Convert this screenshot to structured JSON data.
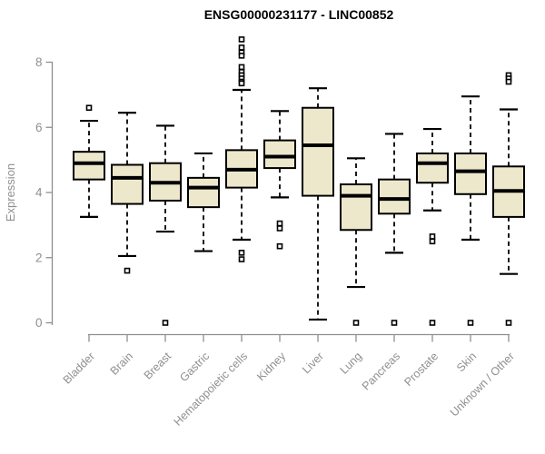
{
  "chart_data": {
    "type": "boxplot",
    "title": "ENSG00000231177 - LINC00852",
    "ylabel": "Expression",
    "xlabel": "",
    "ylim": [
      0,
      8.8
    ],
    "yticks": [
      0,
      2,
      4,
      6,
      8
    ],
    "grid": false,
    "legend": "none",
    "colors": {
      "box_fill": "#EDE7CC",
      "box_stroke": "#000000",
      "axis": "#8E8E8E",
      "tick_label": "#8F8F8F",
      "title": "#000000",
      "background": "#FFFFFF"
    },
    "categories": [
      "Bladder",
      "Brain",
      "Breast",
      "Gastric",
      "Hematopoietic cells",
      "Kidney",
      "Liver",
      "Lung",
      "Pancreas",
      "Prostate",
      "Skin",
      "Unknown / Other"
    ],
    "series": [
      {
        "category": "Bladder",
        "whisker_low": 3.25,
        "q1": 4.4,
        "median": 4.9,
        "q3": 5.25,
        "whisker_high": 6.2,
        "outliers": [
          6.6
        ]
      },
      {
        "category": "Brain",
        "whisker_low": 2.05,
        "q1": 3.65,
        "median": 4.45,
        "q3": 4.85,
        "whisker_high": 6.45,
        "outliers": [
          1.6
        ]
      },
      {
        "category": "Breast",
        "whisker_low": 2.8,
        "q1": 3.75,
        "median": 4.3,
        "q3": 4.9,
        "whisker_high": 6.05,
        "outliers": [
          0
        ]
      },
      {
        "category": "Gastric",
        "whisker_low": 2.2,
        "q1": 3.55,
        "median": 4.15,
        "q3": 4.45,
        "whisker_high": 5.2,
        "outliers": []
      },
      {
        "category": "Hematopoietic cells",
        "whisker_low": 2.55,
        "q1": 4.15,
        "median": 4.7,
        "q3": 5.3,
        "whisker_high": 7.15,
        "outliers": [
          8.7,
          8.45,
          8.3,
          8.2,
          7.85,
          7.7,
          7.6,
          7.5,
          7.4,
          7.35,
          2.15,
          1.95
        ]
      },
      {
        "category": "Kidney",
        "whisker_low": 3.85,
        "q1": 4.75,
        "median": 5.1,
        "q3": 5.6,
        "whisker_high": 6.5,
        "outliers": [
          3.05,
          2.9,
          2.35
        ]
      },
      {
        "category": "Liver",
        "whisker_low": 0.1,
        "q1": 3.9,
        "median": 5.45,
        "q3": 6.6,
        "whisker_high": 7.2,
        "outliers": []
      },
      {
        "category": "Lung",
        "whisker_low": 1.1,
        "q1": 2.85,
        "median": 3.9,
        "q3": 4.25,
        "whisker_high": 5.05,
        "outliers": [
          0
        ]
      },
      {
        "category": "Pancreas",
        "whisker_low": 2.15,
        "q1": 3.35,
        "median": 3.8,
        "q3": 4.4,
        "whisker_high": 5.8,
        "outliers": [
          0
        ]
      },
      {
        "category": "Prostate",
        "whisker_low": 3.45,
        "q1": 4.3,
        "median": 4.9,
        "q3": 5.2,
        "whisker_high": 5.95,
        "outliers": [
          2.65,
          2.5,
          0
        ]
      },
      {
        "category": "Skin",
        "whisker_low": 2.55,
        "q1": 3.95,
        "median": 4.65,
        "q3": 5.2,
        "whisker_high": 6.95,
        "outliers": [
          0
        ]
      },
      {
        "category": "Unknown / Other",
        "whisker_low": 1.5,
        "q1": 3.25,
        "median": 4.05,
        "q3": 4.8,
        "whisker_high": 6.55,
        "outliers": [
          7.6,
          7.5,
          7.4,
          0
        ]
      }
    ]
  }
}
